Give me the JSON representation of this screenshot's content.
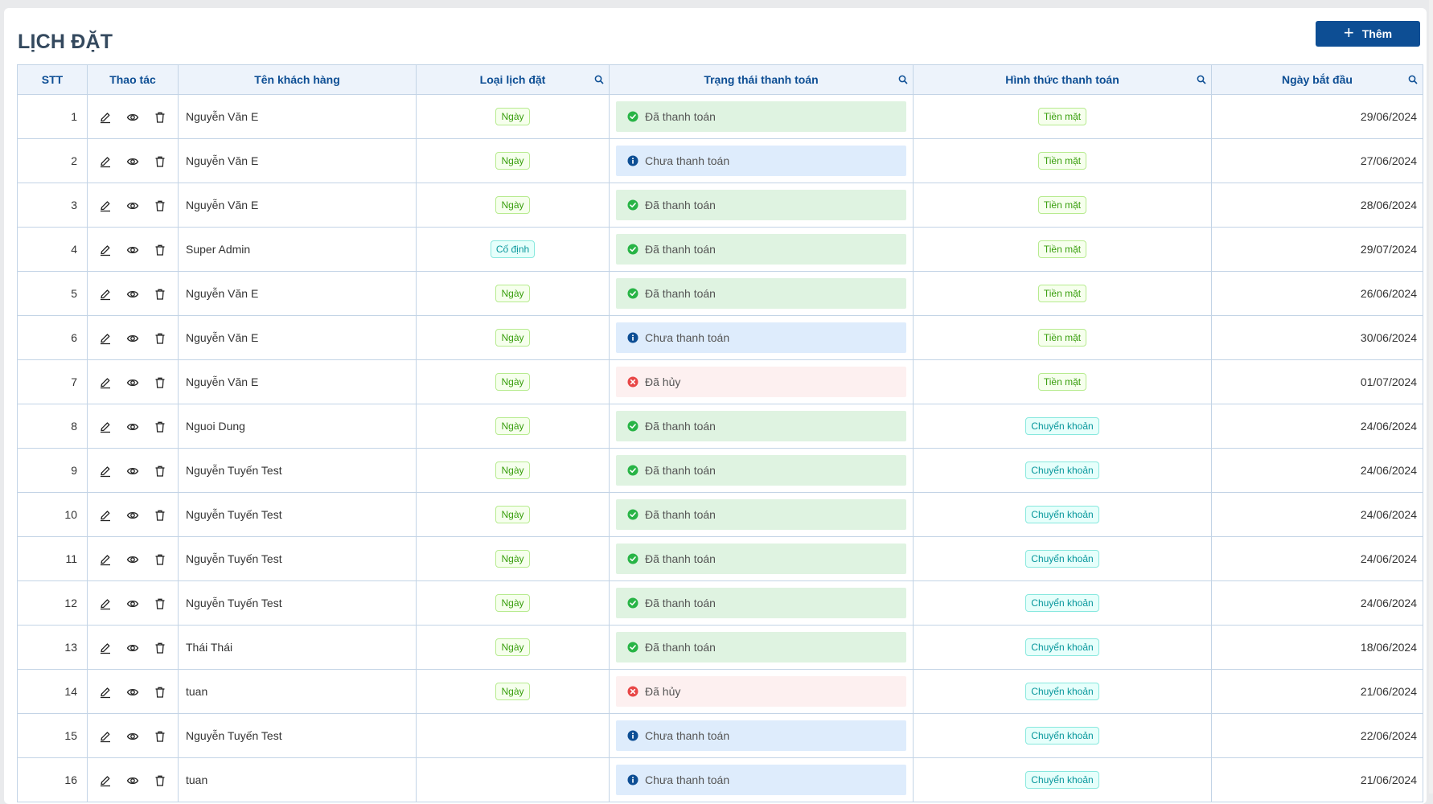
{
  "page": {
    "title": "LỊCH ĐẶT",
    "add_button_label": "Thêm"
  },
  "table": {
    "headers": {
      "stt": "STT",
      "actions": "Thao tác",
      "customer": "Tên khách hàng",
      "type": "Loại lịch đặt",
      "status": "Trạng thái thanh toán",
      "method": "Hình thức thanh toán",
      "start_date": "Ngày bắt đầu"
    },
    "rows": [
      {
        "stt": "1",
        "customer": "Nguyễn Văn E",
        "type": "Ngày",
        "type_kind": "green",
        "status": "Đã thanh toán",
        "status_kind": "paid",
        "method": "Tiền mặt",
        "method_kind": "green",
        "date": "29/06/2024"
      },
      {
        "stt": "2",
        "customer": "Nguyễn Văn E",
        "type": "Ngày",
        "type_kind": "green",
        "status": "Chưa thanh toán",
        "status_kind": "unpaid",
        "method": "Tiền mặt",
        "method_kind": "green",
        "date": "27/06/2024"
      },
      {
        "stt": "3",
        "customer": "Nguyễn Văn E",
        "type": "Ngày",
        "type_kind": "green",
        "status": "Đã thanh toán",
        "status_kind": "paid",
        "method": "Tiền mặt",
        "method_kind": "green",
        "date": "28/06/2024"
      },
      {
        "stt": "4",
        "customer": "Super Admin",
        "type": "Cố định",
        "type_kind": "cyan",
        "status": "Đã thanh toán",
        "status_kind": "paid",
        "method": "Tiền mặt",
        "method_kind": "green",
        "date": "29/07/2024"
      },
      {
        "stt": "5",
        "customer": "Nguyễn Văn E",
        "type": "Ngày",
        "type_kind": "green",
        "status": "Đã thanh toán",
        "status_kind": "paid",
        "method": "Tiền mặt",
        "method_kind": "green",
        "date": "26/06/2024"
      },
      {
        "stt": "6",
        "customer": "Nguyễn Văn E",
        "type": "Ngày",
        "type_kind": "green",
        "status": "Chưa thanh toán",
        "status_kind": "unpaid",
        "method": "Tiền mặt",
        "method_kind": "green",
        "date": "30/06/2024"
      },
      {
        "stt": "7",
        "customer": "Nguyễn Văn E",
        "type": "Ngày",
        "type_kind": "green",
        "status": "Đã hủy",
        "status_kind": "cancel",
        "method": "Tiền mặt",
        "method_kind": "green",
        "date": "01/07/2024"
      },
      {
        "stt": "8",
        "customer": "Nguoi Dung",
        "type": "Ngày",
        "type_kind": "green",
        "status": "Đã thanh toán",
        "status_kind": "paid",
        "method": "Chuyển khoản",
        "method_kind": "cyan",
        "date": "24/06/2024"
      },
      {
        "stt": "9",
        "customer": "Nguyễn Tuyến Test",
        "type": "Ngày",
        "type_kind": "green",
        "status": "Đã thanh toán",
        "status_kind": "paid",
        "method": "Chuyển khoản",
        "method_kind": "cyan",
        "date": "24/06/2024"
      },
      {
        "stt": "10",
        "customer": "Nguyễn Tuyến Test",
        "type": "Ngày",
        "type_kind": "green",
        "status": "Đã thanh toán",
        "status_kind": "paid",
        "method": "Chuyển khoản",
        "method_kind": "cyan",
        "date": "24/06/2024"
      },
      {
        "stt": "11",
        "customer": "Nguyễn Tuyến Test",
        "type": "Ngày",
        "type_kind": "green",
        "status": "Đã thanh toán",
        "status_kind": "paid",
        "method": "Chuyển khoản",
        "method_kind": "cyan",
        "date": "24/06/2024"
      },
      {
        "stt": "12",
        "customer": "Nguyễn Tuyến Test",
        "type": "Ngày",
        "type_kind": "green",
        "status": "Đã thanh toán",
        "status_kind": "paid",
        "method": "Chuyển khoản",
        "method_kind": "cyan",
        "date": "24/06/2024"
      },
      {
        "stt": "13",
        "customer": "Thái Thái",
        "type": "Ngày",
        "type_kind": "green",
        "status": "Đã thanh toán",
        "status_kind": "paid",
        "method": "Chuyển khoản",
        "method_kind": "cyan",
        "date": "18/06/2024"
      },
      {
        "stt": "14",
        "customer": "tuan",
        "type": "Ngày",
        "type_kind": "green",
        "status": "Đã hủy",
        "status_kind": "cancel",
        "method": "Chuyển khoản",
        "method_kind": "cyan",
        "date": "21/06/2024"
      },
      {
        "stt": "15",
        "customer": "Nguyễn Tuyến Test",
        "type": "",
        "type_kind": "",
        "status": "Chưa thanh toán",
        "status_kind": "unpaid",
        "method": "Chuyển khoản",
        "method_kind": "cyan",
        "date": "22/06/2024"
      },
      {
        "stt": "16",
        "customer": "tuan",
        "type": "",
        "type_kind": "",
        "status": "Chưa thanh toán",
        "status_kind": "unpaid",
        "method": "Chuyển khoản",
        "method_kind": "cyan",
        "date": "21/06/2024"
      }
    ]
  },
  "colors": {
    "primary": "#0d4e94",
    "header_bg": "#edf3fb",
    "paid_bg": "#dff3e1",
    "unpaid_bg": "#deecfc",
    "cancel_bg": "#fdf0f0",
    "paid_icon": "#28b446",
    "unpaid_icon": "#0d4e94",
    "cancel_icon": "#e84747"
  },
  "icons": {
    "actions": [
      "edit-icon",
      "view-icon",
      "delete-icon"
    ],
    "header_filter": "search-icon",
    "status": {
      "paid": "check-circle-icon",
      "unpaid": "info-circle-icon",
      "cancel": "close-circle-icon"
    }
  }
}
